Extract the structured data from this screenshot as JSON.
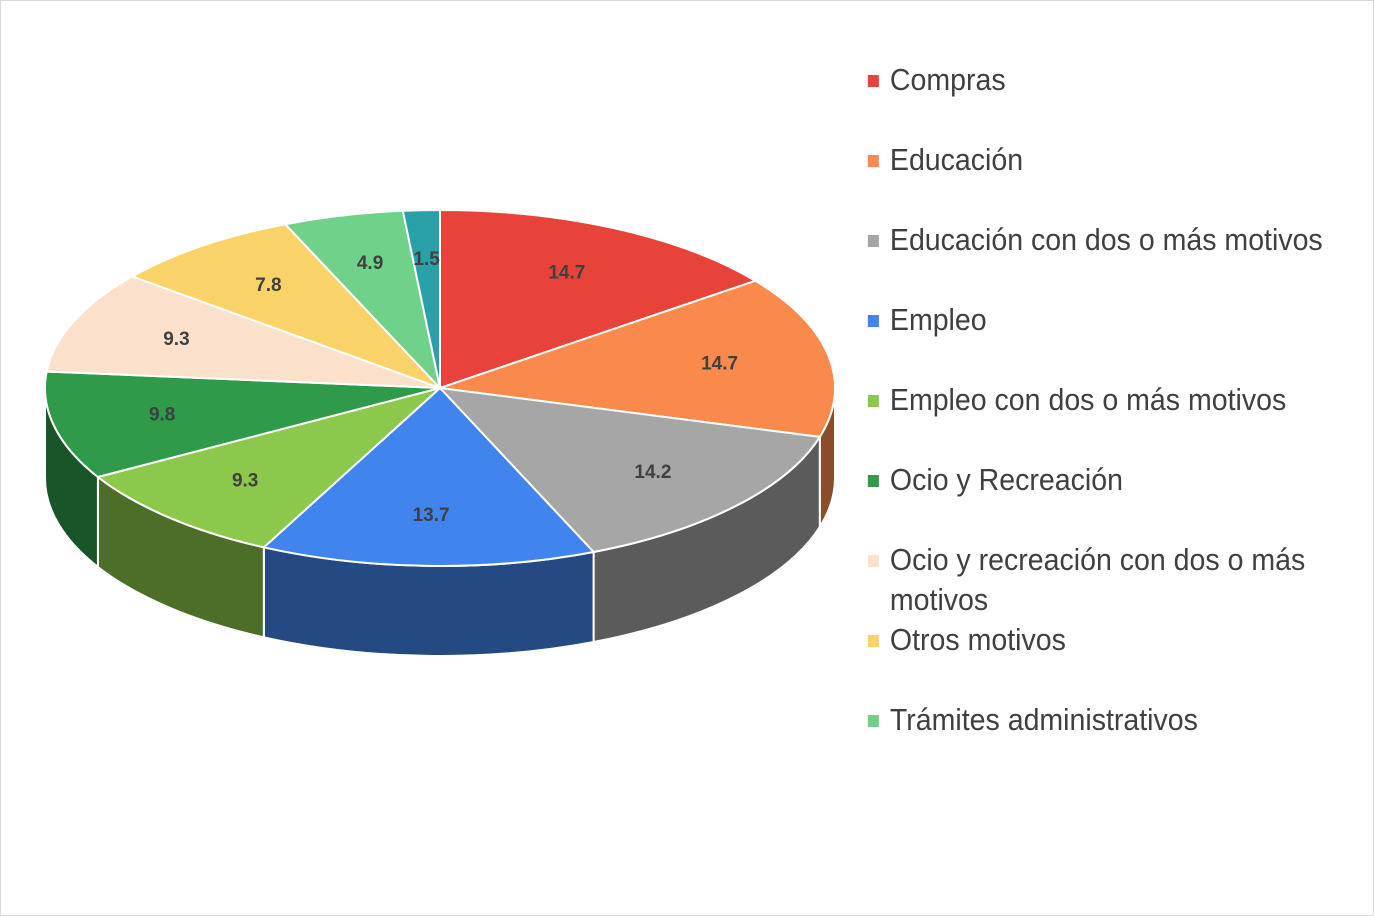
{
  "chart_data": {
    "type": "pie",
    "categories": [
      "Compras",
      "Educación",
      "Educación con dos o más motivos",
      "Empleo",
      "Empleo con dos o más motivos",
      "Ocio y Recreación",
      "Ocio y recreación con dos o más motivos",
      "Otros motivos",
      "Trámites administrativos",
      null
    ],
    "values": [
      14.7,
      14.7,
      14.2,
      13.7,
      9.3,
      9.8,
      9.3,
      7.8,
      4.9,
      1.5
    ],
    "colors": [
      "#e8433a",
      "#fa8a4c",
      "#a6a6a6",
      "#4184ee",
      "#8cc84b",
      "#2e9a4a",
      "#fbe0cc",
      "#f9d36a",
      "#6fd18a",
      "#2aa1a8"
    ],
    "legend": "right"
  }
}
